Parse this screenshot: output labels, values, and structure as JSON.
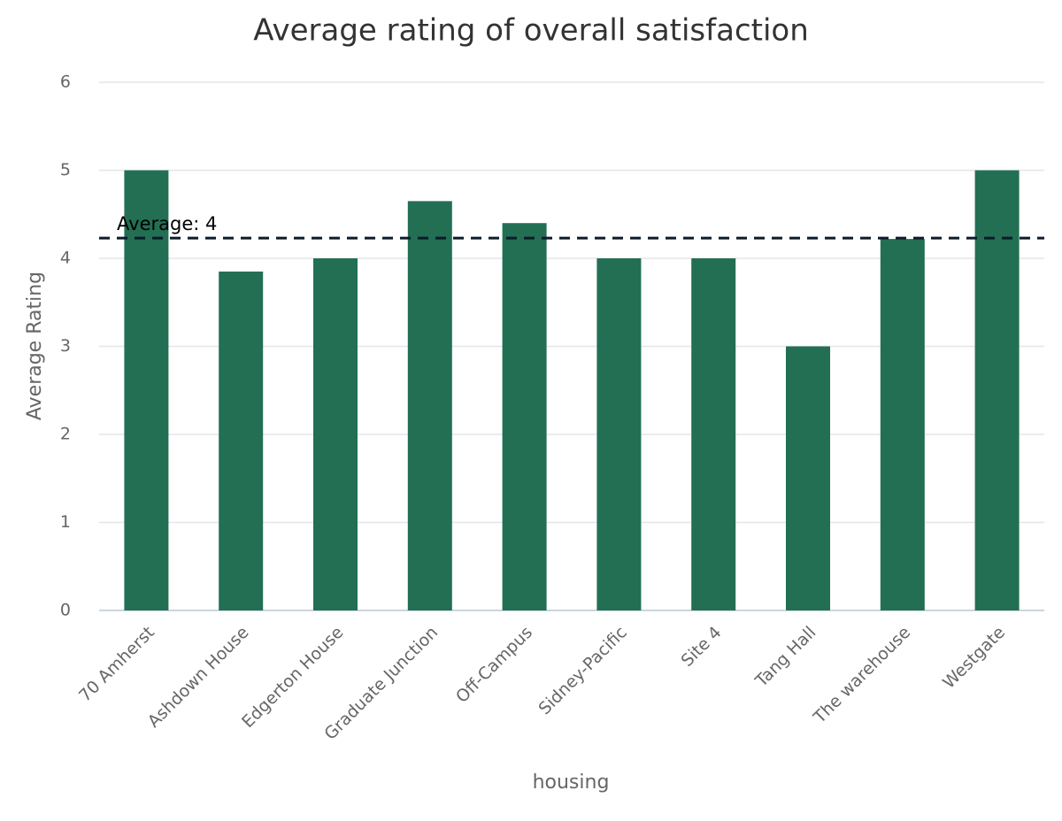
{
  "chart_data": {
    "type": "bar",
    "title": "Average rating of overall satisfaction",
    "x_label": "housing",
    "y_label": "Average Rating",
    "categories": [
      "70 Amherst",
      "Ashdown House",
      "Edgerton House",
      "Graduate Junction",
      "Off-Campus",
      "Sidney-Pacific",
      "Site 4",
      "Tang Hall",
      "The warehouse",
      "Westgate"
    ],
    "values": [
      5,
      3.85,
      4,
      4.65,
      4.4,
      4,
      4,
      3,
      4.22,
      5
    ],
    "color": "#226f54",
    "ylim": [
      0,
      6
    ],
    "yticks": [
      0,
      1,
      2,
      3,
      4,
      5,
      6
    ],
    "grid": true,
    "reference_line": {
      "value": 4.23,
      "label": "Average: 4",
      "color": "#0d1b2a"
    }
  }
}
